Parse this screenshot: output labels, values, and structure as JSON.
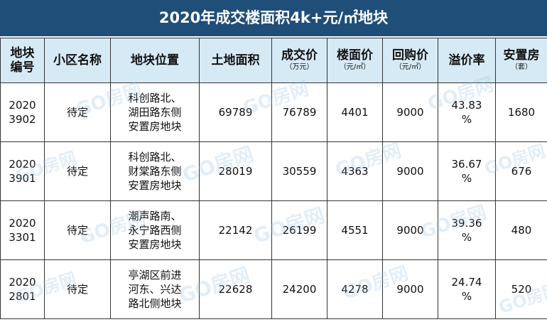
{
  "title": "2020年成交楼面积4k+元/㎡地块",
  "watermark": "GO房网",
  "colors": {
    "title_bg": "#1f4e79",
    "header_bg": "#d6eaf5",
    "watermark": "#96c3e1"
  },
  "headers": [
    {
      "main": "地块\n编号",
      "sub": ""
    },
    {
      "main": "小区名称",
      "sub": ""
    },
    {
      "main": "地块位置",
      "sub": ""
    },
    {
      "main": "土地面积",
      "sub": ""
    },
    {
      "main": "成交价",
      "sub": "（万元）"
    },
    {
      "main": "楼面价",
      "sub": "（元/㎡）"
    },
    {
      "main": "回购价",
      "sub": "（元/㎡）"
    },
    {
      "main": "溢价率",
      "sub": ""
    },
    {
      "main": "安置房",
      "sub": "（套）"
    }
  ],
  "rows": [
    {
      "id": "2020\n3902",
      "name": "待定",
      "location": "科创路北、\n湖田路东侧\n安置房地块",
      "area": "69789",
      "price": "76789",
      "floor_price": "4401",
      "buyback": "9000",
      "premium": "43.83\n%",
      "resettlement": "1680"
    },
    {
      "id": "2020\n3901",
      "name": "待定",
      "location": "科创路北、\n财棠路东侧\n安置房地块",
      "area": "28019",
      "price": "30559",
      "floor_price": "4363",
      "buyback": "9000",
      "premium": "36.67\n%",
      "resettlement": "676"
    },
    {
      "id": "2020\n3301",
      "name": "待定",
      "location": "潮声路南、\n永宁路西侧\n安置房地块",
      "area": "22142",
      "price": "26199",
      "floor_price": "4551",
      "buyback": "9000",
      "premium": "39.36\n%",
      "resettlement": "480"
    },
    {
      "id": "2020\n2801",
      "name": "待定",
      "location": "亭湖区前进\n河东、兴达\n路北侧地块",
      "area": "22628",
      "price": "24200",
      "floor_price": "4278",
      "buyback": "9000",
      "premium": "24.74\n%",
      "resettlement": "520"
    }
  ]
}
